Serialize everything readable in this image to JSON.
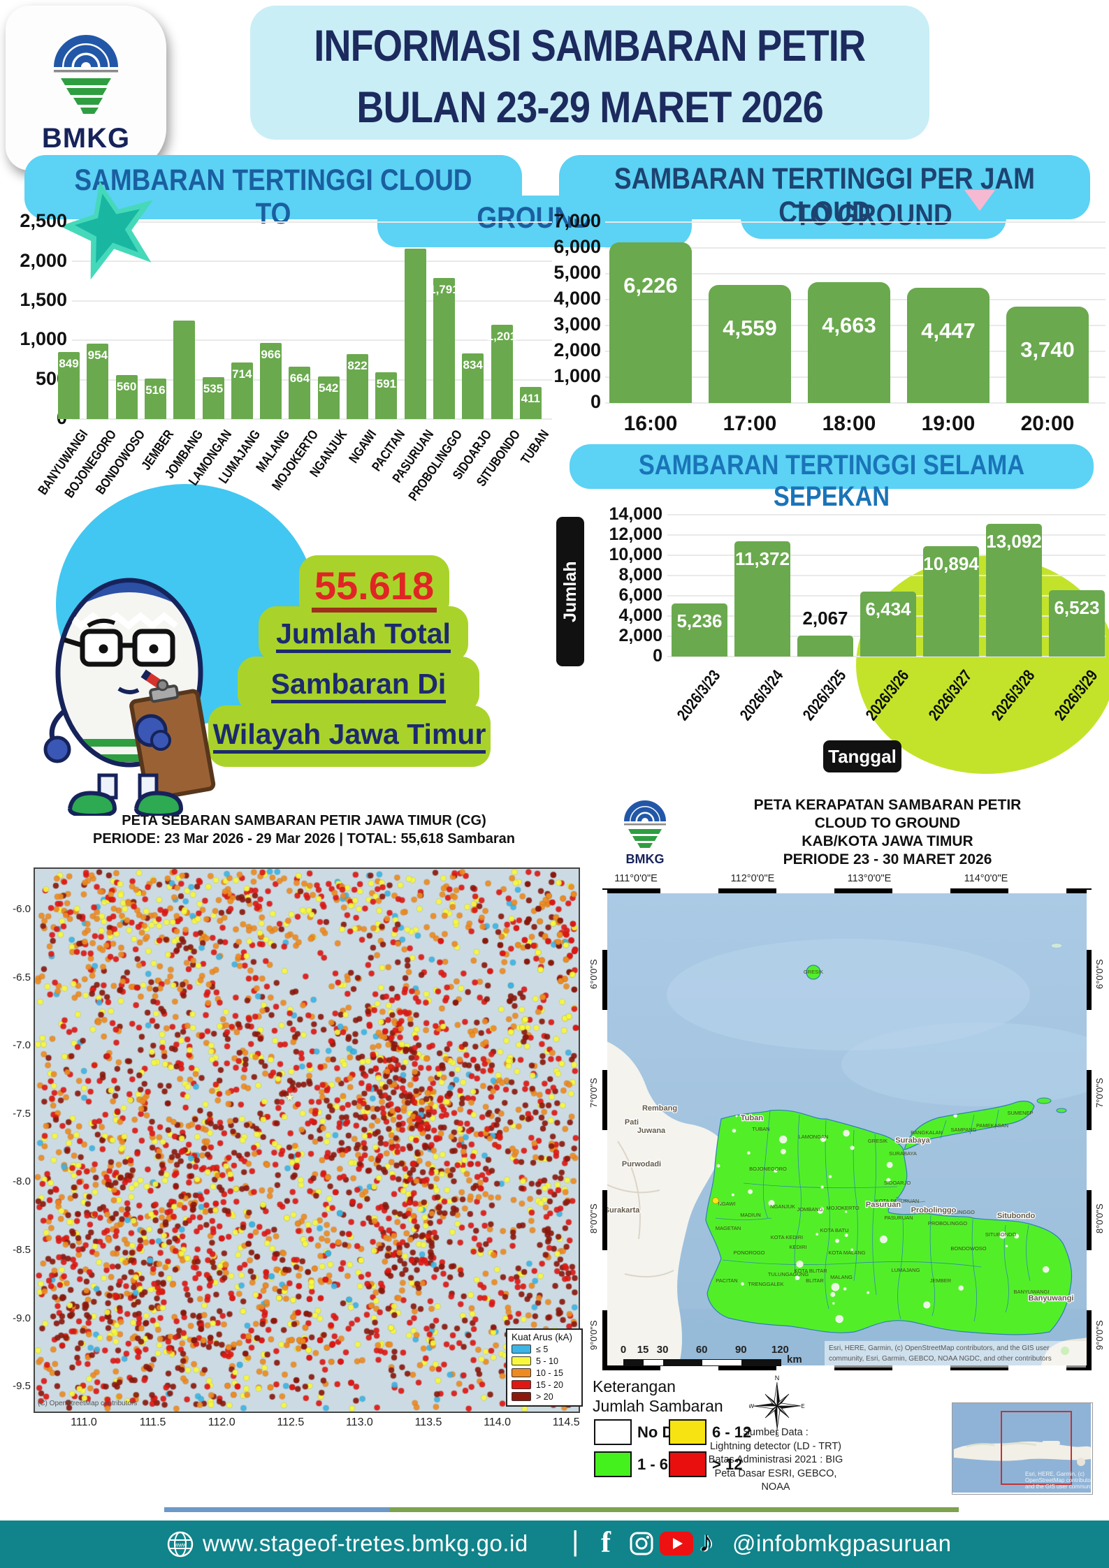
{
  "header": {
    "logo_text": "BMKG",
    "title_line1": "INFORMASI SAMBARAN PETIR",
    "title_line2": "BULAN 23-29 MARET 2026"
  },
  "chart_data": [
    {
      "id": "highest-cg-by-region",
      "type": "bar",
      "title": "SAMBARAN TERTINGGI CLOUD TO GROUND",
      "title_lines": [
        "SAMBARAN TERTINGGI  CLOUD TO",
        "GROUND"
      ],
      "categories": [
        "BANYUWANGI",
        "BOJONEGORO",
        "BONDOWOSO",
        "JEMBER",
        "JOMBANG",
        "LAMONGAN",
        "LUMAJANG",
        "MALANG",
        "MOJOKERTO",
        "NGANJUK",
        "NGAWI",
        "PACITAN",
        "PASURUAN",
        "PROBOLINGGO",
        "SIDOARJO",
        "SITUBONDO",
        "TUBAN"
      ],
      "values": [
        849,
        954,
        560,
        516,
        1250,
        535,
        714,
        966,
        664,
        542,
        822,
        591,
        2160,
        1791,
        834,
        1201,
        411
      ],
      "bar_labels": [
        "849",
        "954",
        "560",
        "516",
        "",
        "535",
        "714",
        "966",
        "664",
        "542",
        "822",
        "591",
        "",
        "1,791",
        "834",
        "1,201",
        "411"
      ],
      "ylim": [
        0,
        2500
      ],
      "yticks": [
        "0",
        "500",
        "1,000",
        "1,500",
        "2,000",
        "2,500"
      ],
      "grid": true,
      "legend_position": "none"
    },
    {
      "id": "highest-cg-per-hour",
      "type": "bar",
      "title": "SAMBARAN TERTINGGI PER JAM CLOUD TO GROUND",
      "title_lines": [
        "SAMBARAN TERTINGGI PER JAM CLOUD",
        "TO GROUND"
      ],
      "categories": [
        "16:00",
        "17:00",
        "18:00",
        "19:00",
        "20:00"
      ],
      "values": [
        6226,
        4559,
        4663,
        4447,
        3740
      ],
      "bar_labels": [
        "6,226",
        "4,559",
        "4,663",
        "4,447",
        "3,740"
      ],
      "ylim": [
        0,
        7000
      ],
      "yticks": [
        "0",
        "1,000",
        "2,000",
        "3,000",
        "4,000",
        "5,000",
        "6,000",
        "7,000"
      ],
      "grid": true,
      "legend_position": "none"
    },
    {
      "id": "highest-per-day-week",
      "type": "bar",
      "title": "SAMBARAN TERTINGGI SELAMA SEPEKAN",
      "categories": [
        "2026/3/23",
        "2026/3/24",
        "2026/3/25",
        "2026/3/26",
        "2026/3/27",
        "2026/3/28",
        "2026/3/29"
      ],
      "values": [
        5236,
        11372,
        2067,
        6434,
        10894,
        13092,
        6523
      ],
      "bar_labels": [
        "5,236",
        "11,372",
        "2,067",
        "6,434",
        "10,894",
        "13,092",
        "6,523"
      ],
      "ylim": [
        0,
        14000
      ],
      "yticks": [
        "0",
        "2,000",
        "4,000",
        "6,000",
        "8,000",
        "10,000",
        "12,000",
        "14,000"
      ],
      "ylabel": "Jumlah Sambaran",
      "xlabel": "Tanggal",
      "grid": true,
      "legend_position": "none"
    }
  ],
  "total_box": {
    "value": "55.618",
    "line1": "Jumlah Total",
    "line2": "Sambaran Di",
    "line3": "Wilayah Jawa Timur"
  },
  "map_left": {
    "title_line1": "PETA SEBARAN SAMBARAN PETIR JAWA TIMUR (CG)",
    "title_line2": "PERIODE: 23 Mar 2026 - 29 Mar 2026 | TOTAL: 55,618 Sambaran",
    "xticks": [
      "111.0",
      "111.5",
      "112.0",
      "112.5",
      "113.0",
      "113.5",
      "114.0",
      "114.5"
    ],
    "yticks": [
      "-6.0",
      "-6.5",
      "-7.0",
      "-7.5",
      "-8.0",
      "-8.5",
      "-9.0",
      "-9.5"
    ],
    "legend_title": "Kuat Arus (kA)",
    "legend_items": [
      {
        "label": "≤ 5",
        "color": "#3cb4e5"
      },
      {
        "label": "5 - 10",
        "color": "#f7f73e"
      },
      {
        "label": "10 - 15",
        "color": "#ee8a1f"
      },
      {
        "label": "15 - 20",
        "color": "#e01713"
      },
      {
        "label": "> 20",
        "color": "#8c180d"
      }
    ],
    "attribution": "(C) OpenStreetMap contributors"
  },
  "map_right": {
    "logo_text": "BMKG",
    "title_lines": [
      "PETA KERAPATAN SAMBARAN PETIR",
      "CLOUD TO GROUND",
      "KAB/KOTA JAWA TIMUR",
      "PERIODE 23 - 30 MARET 2026"
    ],
    "lon_ticks": [
      "111°0'0\"E",
      "112°0'0\"E",
      "113°0'0\"E",
      "114°0'0\"E"
    ],
    "lat_ticks": [
      "6°0'0\"S",
      "7°0'0\"S",
      "8°0'0\"S",
      "9°0'0\"S"
    ],
    "scalebar_ticks": [
      "0",
      "15",
      "30",
      "60",
      "90",
      "120"
    ],
    "scalebar_unit": "km",
    "map_attribution_line1": "Esri, HERE, Garmin, (c) OpenStreetMap contributors, and the GIS user",
    "map_attribution_line2": "community, Esri, Garmin, GEBCO, NOAA NGDC, and other contributors",
    "legend_title1": "Keterangan",
    "legend_title2": "Jumlah Sambaran",
    "legend_items": [
      {
        "label": "No Data",
        "color": "#ffffff"
      },
      {
        "label": "6 - 12",
        "color": "#f6e311"
      },
      {
        "label": "1 - 6",
        "color": "#44f11c"
      },
      {
        "label": "> 12",
        "color": "#e90f0f"
      }
    ],
    "source_lines": [
      "Sumber Data :",
      "Lightning detector (LD - TRT)",
      "Batas Administrasi 2021  : BIG",
      "Peta Dasar ESRI, GEBCO, NOAA"
    ],
    "inset_attribution_line1": "Esri, HERE, Garmin, (c)",
    "inset_attribution_line2": "OpenStreetMap contributors,",
    "inset_attribution_line3": "and the GIS user community",
    "region_labels": [
      "TUBAN",
      "LAMONGAN",
      "BOJONEGORO",
      "GRESIK",
      "SURABAYA",
      "SIDOARJO",
      "BANGKALAN",
      "SAMPANG",
      "PAMEKASAN",
      "SUMENEP",
      "NGAWI",
      "MADIUN",
      "MAGETAN",
      "NGANJUK",
      "JOMBANG",
      "MOJOKERTO",
      "KOTA KEDIRI",
      "KEDIRI",
      "KOTA BATU",
      "KOTA MALANG",
      "MALANG",
      "KOTA PASURUAN",
      "PASURUAN",
      "KOTA PROBOLINGGO",
      "PROBOLINGGO",
      "PONOROGO",
      "PACITAN",
      "TRENGGALEK",
      "TULUNGAGUNG",
      "KOTA BLITAR",
      "BLITAR",
      "LUMAJANG",
      "JEMBER",
      "BONDOWOSO",
      "SITUBONDO",
      "BANYUWANGI",
      "GRESIK"
    ],
    "basemap_labels": [
      "Rembang",
      "Pati",
      "Juwana",
      "Purwodadi",
      "Surakarta"
    ],
    "city_labels": [
      "Tuban",
      "Surabaya",
      "Pasuruan",
      "Probolinggo",
      "Situbondo",
      "Banyuwangi"
    ]
  },
  "footer": {
    "website": "www.stageof-tretes.bmkg.go.id",
    "separator": "|",
    "handle": "@infobmkgpasuruan"
  },
  "colors": {
    "bar_green": "#6aa94e",
    "cyan_title_box": "#5cd2f4",
    "header_box": "#c9eef6",
    "navy": "#1c2a5e",
    "lime_box": "#a9d32a",
    "lime_ellipse": "#c3e32b",
    "cyan_circle": "#41c7f1",
    "footer_teal": "#11838a",
    "total_red": "#e02525",
    "sea": "#a9c8e3",
    "east_java_green": "#52ef29"
  }
}
